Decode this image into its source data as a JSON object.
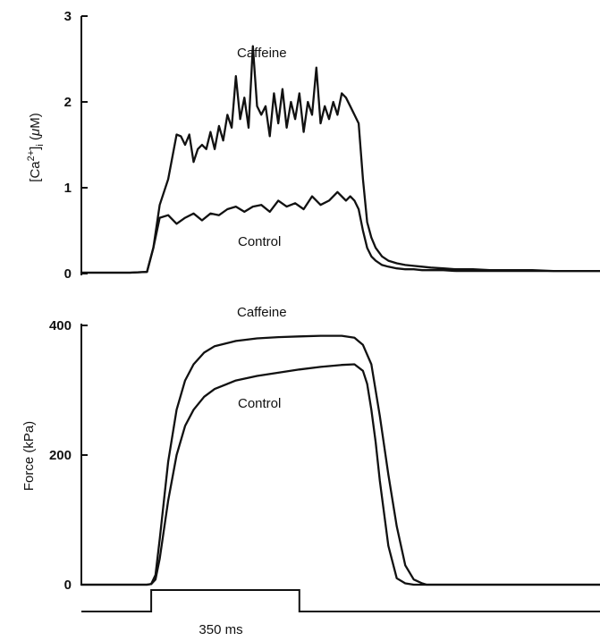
{
  "chart_data": [
    {
      "type": "line",
      "panel": "calcium",
      "ylabel_html": "[Ca²⁺]ᵢ (μM)",
      "ylabel": "[Ca2+]i (μM)",
      "ylim": [
        0,
        3
      ],
      "yticks": [
        0,
        1,
        2,
        3
      ],
      "xlim_ms": [
        -165,
        1060
      ],
      "series": [
        {
          "name": "Caffeine",
          "x": [
            -165,
            -50,
            -10,
            5,
            20,
            40,
            60,
            70,
            80,
            90,
            100,
            110,
            120,
            130,
            140,
            150,
            160,
            170,
            180,
            190,
            200,
            210,
            220,
            230,
            240,
            250,
            260,
            270,
            280,
            290,
            300,
            310,
            320,
            330,
            340,
            350,
            360,
            370,
            380,
            390,
            400,
            410,
            420,
            430,
            440,
            450,
            460,
            470,
            480,
            490,
            500,
            510,
            520,
            530,
            545,
            560,
            580,
            600,
            620,
            640,
            660,
            690,
            720,
            760,
            800,
            850,
            900,
            950,
            1000,
            1060
          ],
          "values": [
            0.01,
            0.01,
            0.02,
            0.3,
            0.8,
            1.1,
            1.62,
            1.6,
            1.5,
            1.62,
            1.3,
            1.45,
            1.5,
            1.45,
            1.65,
            1.45,
            1.72,
            1.55,
            1.85,
            1.7,
            2.3,
            1.8,
            2.05,
            1.7,
            2.65,
            1.95,
            1.85,
            1.95,
            1.6,
            2.1,
            1.75,
            2.15,
            1.7,
            2.0,
            1.8,
            2.1,
            1.65,
            2.0,
            1.85,
            2.4,
            1.75,
            1.95,
            1.8,
            2.0,
            1.85,
            2.1,
            2.05,
            1.95,
            1.85,
            1.75,
            1.1,
            0.6,
            0.42,
            0.3,
            0.2,
            0.15,
            0.12,
            0.1,
            0.09,
            0.08,
            0.07,
            0.06,
            0.05,
            0.05,
            0.04,
            0.04,
            0.04,
            0.03,
            0.03,
            0.03
          ]
        },
        {
          "name": "Control",
          "x": [
            -165,
            -50,
            -10,
            5,
            20,
            40,
            60,
            80,
            100,
            120,
            140,
            160,
            180,
            200,
            220,
            240,
            260,
            280,
            300,
            320,
            340,
            360,
            380,
            400,
            420,
            440,
            460,
            470,
            480,
            490,
            500,
            510,
            520,
            530,
            545,
            560,
            580,
            600,
            620,
            640,
            660,
            690,
            720,
            760,
            800,
            850,
            900,
            950,
            1000,
            1060
          ],
          "values": [
            0.01,
            0.01,
            0.02,
            0.3,
            0.65,
            0.68,
            0.58,
            0.65,
            0.7,
            0.62,
            0.7,
            0.68,
            0.75,
            0.78,
            0.72,
            0.78,
            0.8,
            0.72,
            0.85,
            0.78,
            0.82,
            0.75,
            0.9,
            0.8,
            0.85,
            0.95,
            0.85,
            0.9,
            0.85,
            0.75,
            0.5,
            0.3,
            0.2,
            0.15,
            0.1,
            0.08,
            0.06,
            0.05,
            0.05,
            0.04,
            0.04,
            0.04,
            0.03,
            0.03,
            0.03,
            0.03,
            0.03,
            0.03,
            0.03,
            0.03
          ]
        }
      ]
    },
    {
      "type": "line",
      "panel": "force",
      "ylabel": "Force (kPa)",
      "ylim": [
        0,
        400
      ],
      "yticks": [
        0,
        200,
        400
      ],
      "xlim_ms": [
        -165,
        1060
      ],
      "series": [
        {
          "name": "Caffeine",
          "x": [
            -165,
            -10,
            0,
            10,
            20,
            40,
            60,
            80,
            100,
            125,
            150,
            200,
            250,
            300,
            350,
            400,
            450,
            480,
            500,
            520,
            540,
            560,
            580,
            600,
            620,
            640,
            650,
            660,
            680,
            700,
            750,
            800,
            900,
            1000,
            1060
          ],
          "values": [
            0,
            0,
            1,
            15,
            70,
            190,
            270,
            315,
            340,
            358,
            368,
            376,
            380,
            382,
            383,
            384,
            384,
            381,
            370,
            340,
            260,
            170,
            90,
            30,
            8,
            2,
            0,
            0,
            0,
            0,
            0,
            0,
            0,
            0,
            0
          ]
        },
        {
          "name": "Control",
          "x": [
            -165,
            -10,
            0,
            10,
            20,
            40,
            60,
            80,
            100,
            125,
            150,
            200,
            250,
            300,
            350,
            400,
            450,
            480,
            500,
            510,
            520,
            530,
            540,
            560,
            580,
            600,
            620,
            640,
            660,
            700,
            800,
            900,
            1000,
            1060
          ],
          "values": [
            0,
            0,
            1,
            8,
            40,
            130,
            200,
            245,
            270,
            290,
            302,
            315,
            322,
            327,
            332,
            336,
            339,
            340,
            330,
            310,
            270,
            220,
            160,
            60,
            10,
            2,
            0,
            0,
            0,
            0,
            0,
            0,
            0,
            0
          ]
        }
      ]
    },
    {
      "type": "line",
      "panel": "stimulus",
      "onset_ms": 0,
      "offset_ms": 350,
      "duration_label": "350 ms"
    }
  ],
  "labels": {
    "caffeine_top": "Caffeine",
    "control_top": "Control",
    "caffeine_bottom": "Caffeine",
    "control_bottom": "Control",
    "stimulus": "350 ms"
  }
}
